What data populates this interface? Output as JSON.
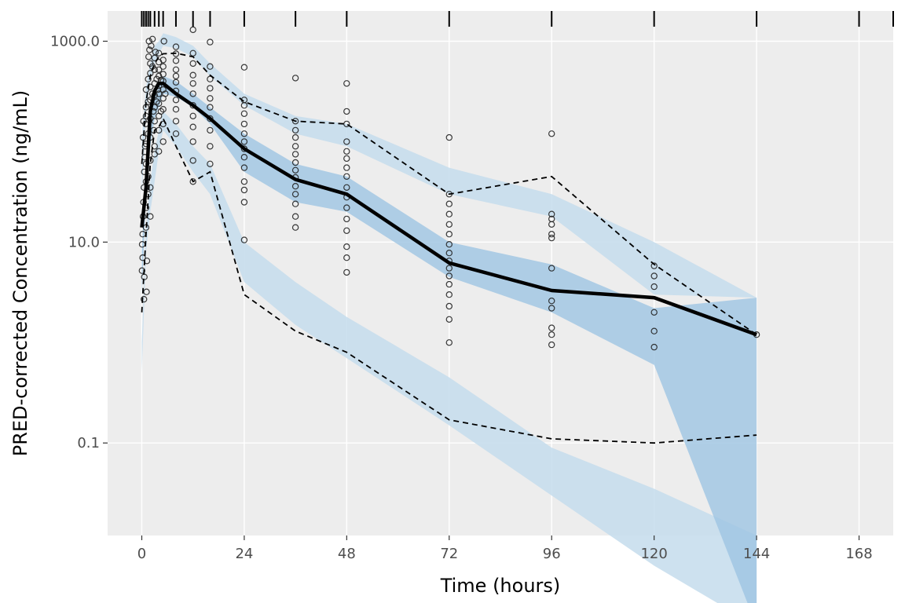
{
  "chart_data": {
    "type": "scatter",
    "title": "",
    "xlabel": "Time (hours)",
    "ylabel": "PRED-corrected Concentration (ng/mL)",
    "x_ticks": [
      0,
      24,
      48,
      72,
      96,
      120,
      144,
      168
    ],
    "x_tick_labels": [
      "0",
      "24",
      "48",
      "72",
      "96",
      "120",
      "144",
      "168"
    ],
    "xlim": [
      -8,
      176
    ],
    "y_scale": "log10",
    "ylim": [
      0.012,
      2000
    ],
    "y_ticks": [
      0.1,
      10,
      1000
    ],
    "y_tick_labels": [
      "0.1",
      "10.0",
      "1000.0"
    ],
    "grid": true,
    "rug_x": [
      0,
      0.5,
      1,
      1.5,
      2,
      3,
      4,
      5,
      8,
      12,
      16,
      24,
      36,
      48,
      72,
      96,
      120,
      144,
      168,
      176
    ],
    "bin_x": [
      0,
      1,
      2,
      3,
      4,
      5,
      8,
      12,
      16,
      24,
      36,
      48,
      72,
      96,
      120,
      144
    ],
    "pi_bands": {
      "lower_outer": [
        0.5,
        8,
        20,
        40,
        80,
        130,
        90,
        50,
        30,
        4,
        1.5,
        0.7,
        0.15,
        0.03,
        0.006,
        0.0015
      ],
      "lower_inner": [
        1,
        14,
        40,
        80,
        130,
        200,
        150,
        90,
        60,
        10,
        4,
        1.8,
        0.45,
        0.09,
        0.035,
        0.012
      ],
      "median_outer": [
        3,
        30,
        90,
        170,
        220,
        300,
        280,
        220,
        150,
        50,
        25,
        20,
        4.5,
        2,
        0.6,
        0.0015
      ],
      "median_inner": [
        8,
        60,
        170,
        280,
        350,
        450,
        400,
        300,
        220,
        120,
        60,
        45,
        10,
        6,
        2.2,
        2.8
      ],
      "upper_inner": [
        30,
        200,
        400,
        600,
        750,
        900,
        850,
        700,
        450,
        230,
        120,
        90,
        30,
        18,
        3,
        2.8
      ],
      "upper_outer": [
        100,
        350,
        600,
        900,
        1000,
        1200,
        1100,
        900,
        600,
        300,
        180,
        150,
        55,
        30,
        10,
        2.8
      ]
    },
    "series": [
      {
        "name": "observed median",
        "values": [
          14,
          35,
          200,
          320,
          380,
          380,
          300,
          230,
          170,
          85,
          42,
          30,
          6.2,
          3.3,
          2.8,
          1.2
        ]
      },
      {
        "name": "observed 5th percentile",
        "values": [
          2,
          12,
          60,
          130,
          140,
          170,
          90,
          40,
          50,
          3,
          1.3,
          0.8,
          0.17,
          0.11,
          0.1,
          0.12
        ]
      },
      {
        "name": "observed 95th percentile",
        "values": [
          60,
          250,
          450,
          600,
          700,
          750,
          760,
          700,
          460,
          250,
          160,
          150,
          30,
          45,
          6,
          1.2
        ]
      }
    ],
    "points": [
      [
        0.05,
        5.2
      ],
      [
        0.1,
        9.5
      ],
      [
        0.2,
        12
      ],
      [
        0.3,
        18
      ],
      [
        0.4,
        25
      ],
      [
        0.5,
        35
      ],
      [
        0.6,
        50
      ],
      [
        0.7,
        70
      ],
      [
        0.3,
        110
      ],
      [
        0.4,
        160
      ],
      [
        0.2,
        7
      ],
      [
        0.5,
        2.7
      ],
      [
        0.6,
        4.5
      ],
      [
        0.8,
        90
      ],
      [
        0.9,
        150
      ],
      [
        1,
        14
      ],
      [
        1,
        22
      ],
      [
        1,
        40
      ],
      [
        1,
        60
      ],
      [
        1,
        95
      ],
      [
        1,
        180
      ],
      [
        1,
        220
      ],
      [
        1,
        330
      ],
      [
        1.1,
        3.2
      ],
      [
        1.2,
        6.5
      ],
      [
        1.5,
        30
      ],
      [
        1.5,
        45
      ],
      [
        1.5,
        120
      ],
      [
        1.5,
        250
      ],
      [
        1.5,
        420
      ],
      [
        1.6,
        700
      ],
      [
        1.7,
        1000
      ],
      [
        1.8,
        820
      ],
      [
        2,
        18
      ],
      [
        2,
        35
      ],
      [
        2,
        65
      ],
      [
        2,
        110
      ],
      [
        2,
        170
      ],
      [
        2,
        260
      ],
      [
        2,
        350
      ],
      [
        2,
        480
      ],
      [
        2,
        600
      ],
      [
        2.2,
        900
      ],
      [
        2.5,
        1050
      ],
      [
        2.5,
        560
      ],
      [
        2.5,
        300
      ],
      [
        2.7,
        200
      ],
      [
        2.8,
        130
      ],
      [
        3,
        75
      ],
      [
        3,
        90
      ],
      [
        3,
        160
      ],
      [
        3,
        220
      ],
      [
        3,
        290
      ],
      [
        3,
        380
      ],
      [
        3,
        520
      ],
      [
        3,
        680
      ],
      [
        3.2,
        780
      ],
      [
        3.5,
        250
      ],
      [
        3.5,
        420
      ],
      [
        3.8,
        330
      ],
      [
        4,
        80
      ],
      [
        4,
        130
      ],
      [
        4,
        180
      ],
      [
        4,
        240
      ],
      [
        4,
        300
      ],
      [
        4,
        360
      ],
      [
        4,
        450
      ],
      [
        4,
        520
      ],
      [
        4,
        620
      ],
      [
        4,
        760
      ],
      [
        4.5,
        200
      ],
      [
        4.5,
        410
      ],
      [
        5,
        100
      ],
      [
        5,
        150
      ],
      [
        5,
        210
      ],
      [
        5,
        270
      ],
      [
        5,
        330
      ],
      [
        5,
        400
      ],
      [
        5,
        470
      ],
      [
        5,
        560
      ],
      [
        5,
        650
      ],
      [
        5.2,
        1000
      ],
      [
        5.5,
        300
      ],
      [
        8,
        120
      ],
      [
        8,
        160
      ],
      [
        8,
        210
      ],
      [
        8,
        260
      ],
      [
        8,
        320
      ],
      [
        8,
        390
      ],
      [
        8,
        450
      ],
      [
        8,
        520
      ],
      [
        8,
        640
      ],
      [
        8,
        750
      ],
      [
        8,
        880
      ],
      [
        12,
        40
      ],
      [
        12,
        65
      ],
      [
        12,
        100
      ],
      [
        12,
        140
      ],
      [
        12,
        180
      ],
      [
        12,
        230
      ],
      [
        12,
        300
      ],
      [
        12,
        380
      ],
      [
        12,
        460
      ],
      [
        12,
        600
      ],
      [
        12,
        760
      ],
      [
        12,
        1300
      ],
      [
        16,
        60
      ],
      [
        16,
        90
      ],
      [
        16,
        130
      ],
      [
        16,
        170
      ],
      [
        16,
        220
      ],
      [
        16,
        270
      ],
      [
        16,
        340
      ],
      [
        16,
        420
      ],
      [
        16,
        560
      ],
      [
        16,
        980
      ],
      [
        24,
        10.5
      ],
      [
        24,
        25
      ],
      [
        24,
        33
      ],
      [
        24,
        40
      ],
      [
        24,
        55
      ],
      [
        24,
        70
      ],
      [
        24,
        85
      ],
      [
        24,
        100
      ],
      [
        24,
        120
      ],
      [
        24,
        150
      ],
      [
        24,
        190
      ],
      [
        24,
        230
      ],
      [
        24,
        260
      ],
      [
        24,
        550
      ],
      [
        36,
        14
      ],
      [
        36,
        18
      ],
      [
        36,
        24
      ],
      [
        36,
        30
      ],
      [
        36,
        36
      ],
      [
        36,
        44
      ],
      [
        36,
        52
      ],
      [
        36,
        62
      ],
      [
        36,
        75
      ],
      [
        36,
        90
      ],
      [
        36,
        110
      ],
      [
        36,
        130
      ],
      [
        36,
        160
      ],
      [
        36,
        430
      ],
      [
        48,
        5
      ],
      [
        48,
        7
      ],
      [
        48,
        9
      ],
      [
        48,
        13
      ],
      [
        48,
        17
      ],
      [
        48,
        22
      ],
      [
        48,
        28
      ],
      [
        48,
        35
      ],
      [
        48,
        45
      ],
      [
        48,
        55
      ],
      [
        48,
        68
      ],
      [
        48,
        80
      ],
      [
        48,
        100
      ],
      [
        48,
        150
      ],
      [
        48,
        200
      ],
      [
        48,
        380
      ],
      [
        72,
        1
      ],
      [
        72,
        1.7
      ],
      [
        72,
        2.3
      ],
      [
        72,
        3
      ],
      [
        72,
        3.8
      ],
      [
        72,
        4.6
      ],
      [
        72,
        5.5
      ],
      [
        72,
        6.5
      ],
      [
        72,
        7.8
      ],
      [
        72,
        9.5
      ],
      [
        72,
        12
      ],
      [
        72,
        15
      ],
      [
        72,
        19
      ],
      [
        72,
        24
      ],
      [
        72,
        30
      ],
      [
        72,
        110
      ],
      [
        96,
        0.95
      ],
      [
        96,
        1.2
      ],
      [
        96,
        1.4
      ],
      [
        96,
        2.2
      ],
      [
        96,
        2.6
      ],
      [
        96,
        5.5
      ],
      [
        96,
        11
      ],
      [
        96,
        12
      ],
      [
        96,
        15
      ],
      [
        96,
        17
      ],
      [
        96,
        19
      ],
      [
        96,
        120
      ],
      [
        120,
        0.9
      ],
      [
        120,
        1.3
      ],
      [
        120,
        2
      ],
      [
        120,
        3.6
      ],
      [
        120,
        4.6
      ],
      [
        120,
        5.8
      ],
      [
        144,
        1.2
      ]
    ]
  },
  "colors": {
    "panel_background": "#ededed",
    "grid": "#ffffff",
    "pi_outer": "#c4dcec",
    "pi_inner": "#9ec4e2",
    "median_pi": "#7aaedb",
    "line": "#000000",
    "point_stroke": "#222222"
  }
}
